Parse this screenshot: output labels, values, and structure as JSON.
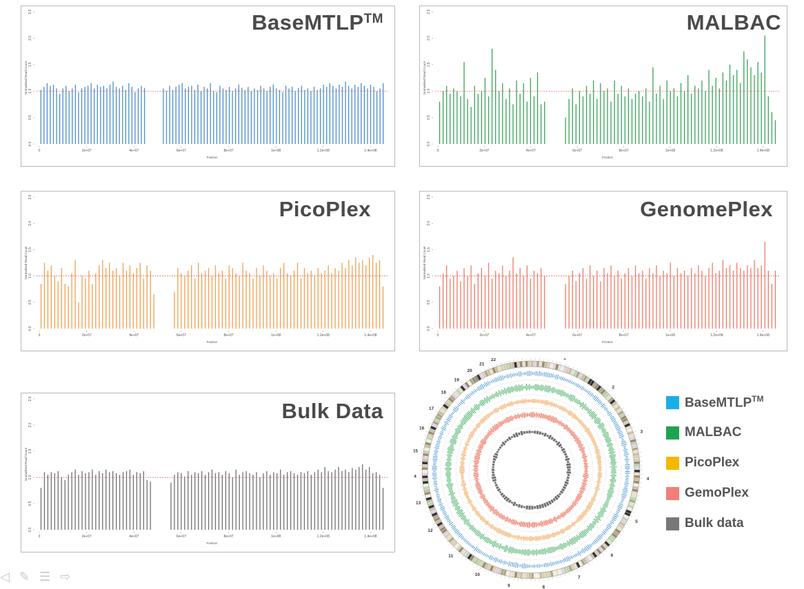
{
  "chart_data": [
    {
      "type": "bar",
      "title": "BaseMTLP",
      "title_sup": "TM",
      "xlabel": "Position",
      "ylabel": "Normalized Read Count",
      "ylim": [
        0,
        2.5
      ],
      "yticks": [
        "0.0",
        "0.5",
        "1.0",
        "1.5",
        "2.0",
        "2.5"
      ],
      "xticks": [
        {
          "label": "0",
          "v": 0
        },
        {
          "label": "2e+07",
          "v": 20000000
        },
        {
          "label": "4e+07",
          "v": 40000000
        },
        {
          "label": "6e+07",
          "v": 60000000
        },
        {
          "label": "8e+07",
          "v": 80000000
        },
        {
          "label": "1e+08",
          "v": 100000000
        },
        {
          "label": "1.2e+08",
          "v": 120000000
        },
        {
          "label": "1.4e+08",
          "v": 140000000
        }
      ],
      "xlim": [
        0,
        146000000
      ],
      "reference_line": 1.0,
      "color": "#4a8fc7",
      "values": [
        1.02,
        1.08,
        1.15,
        1.1,
        1.12,
        1.05,
        0.95,
        1.05,
        1.1,
        1.0,
        1.05,
        1.12,
        0.98,
        1.05,
        1.08,
        1.1,
        1.15,
        1.05,
        1.12,
        1.08,
        1.1,
        1.05,
        1.12,
        1.18,
        1.08,
        1.05,
        1.1,
        1.02,
        1.15,
        1.08,
        0.98,
        1.05,
        1.1,
        1.06,
        null,
        null,
        null,
        null,
        null,
        1.05,
        1.0,
        1.1,
        1.02,
        1.08,
        1.12,
        1.15,
        1.05,
        1.08,
        1.1,
        1.02,
        1.12,
        1.0,
        1.08,
        1.05,
        1.15,
        1.0,
        0.98,
        1.1,
        1.05,
        1.02,
        1.08,
        1.0,
        1.05,
        1.12,
        1.06,
        1.02,
        1.08,
        1.0,
        1.05,
        1.02,
        1.1,
        1.05,
        1.0,
        1.08,
        1.12,
        1.05,
        1.02,
        0.98,
        1.1,
        1.05,
        1.08,
        1.0,
        1.06,
        1.1,
        1.02,
        1.05,
        1.0,
        1.08,
        1.02,
        1.05,
        1.12,
        1.08,
        1.15,
        1.1,
        1.05,
        1.12,
        1.08,
        1.18,
        1.1,
        1.05,
        1.12,
        1.08,
        1.15,
        1.1,
        1.05,
        1.12,
        1.08,
        1.0,
        1.05,
        1.15
      ]
    },
    {
      "type": "bar",
      "title": "MALBAC",
      "xlabel": "Position",
      "ylabel": "Normalized Read Count",
      "ylim": [
        0,
        2.5
      ],
      "yticks": [
        "0.0",
        "0.5",
        "1.0",
        "1.5",
        "2.0",
        "2.5"
      ],
      "xticks": [
        {
          "label": "0",
          "v": 0
        },
        {
          "label": "2e+07",
          "v": 20000000
        },
        {
          "label": "4e+07",
          "v": 40000000
        },
        {
          "label": "6e+07",
          "v": 60000000
        },
        {
          "label": "8e+07",
          "v": 80000000
        },
        {
          "label": "1e+08",
          "v": 100000000
        },
        {
          "label": "1.2e+08",
          "v": 120000000
        },
        {
          "label": "1.4e+08",
          "v": 140000000
        }
      ],
      "xlim": [
        0,
        146000000
      ],
      "reference_line": 1.0,
      "color": "#3aa15a",
      "values": [
        0.8,
        1.0,
        1.1,
        0.95,
        1.05,
        1.0,
        0.9,
        1.55,
        0.85,
        0.7,
        1.1,
        0.95,
        1.0,
        1.25,
        0.9,
        1.8,
        1.4,
        1.0,
        1.15,
        0.85,
        1.05,
        0.75,
        1.2,
        0.95,
        1.15,
        0.8,
        1.25,
        0.9,
        1.35,
        0.75,
        0.8,
        null,
        null,
        null,
        null,
        null,
        0.5,
        0.85,
        1.05,
        0.75,
        1.0,
        0.9,
        1.1,
        0.95,
        1.2,
        0.85,
        1.15,
        1.0,
        1.05,
        0.8,
        1.2,
        0.95,
        1.1,
        0.9,
        1.05,
        0.85,
        0.95,
        1.0,
        0.9,
        1.05,
        0.8,
        1.45,
        0.95,
        1.1,
        0.85,
        1.2,
        1.0,
        1.05,
        0.9,
        1.15,
        1.0,
        1.3,
        0.95,
        1.1,
        1.05,
        1.2,
        1.0,
        1.4,
        1.1,
        1.25,
        1.05,
        1.35,
        1.2,
        1.5,
        1.3,
        1.4,
        1.15,
        1.75,
        1.6,
        1.45,
        1.3,
        1.55,
        1.35,
        2.05,
        0.9,
        0.6,
        0.45
      ]
    },
    {
      "type": "bar",
      "title": "PicoPlex",
      "xlabel": "Position",
      "ylabel": "Normalized Read Count",
      "ylim": [
        0,
        2.5
      ],
      "yticks": [
        "0.0",
        "0.5",
        "1.0",
        "1.5",
        "2.0",
        "2.5"
      ],
      "xticks": [
        {
          "label": "0",
          "v": 0
        },
        {
          "label": "2e+07",
          "v": 20000000
        },
        {
          "label": "4e+07",
          "v": 40000000
        },
        {
          "label": "6e+07",
          "v": 60000000
        },
        {
          "label": "8e+07",
          "v": 80000000
        },
        {
          "label": "1e+08",
          "v": 100000000
        },
        {
          "label": "1.2e+08",
          "v": 120000000
        },
        {
          "label": "1.4e+08",
          "v": 140000000
        }
      ],
      "xlim": [
        0,
        146000000
      ],
      "reference_line": 1.0,
      "color": "#f0a050",
      "values": [
        0.85,
        1.25,
        1.1,
        1.2,
        1.0,
        0.9,
        1.15,
        0.85,
        0.8,
        1.05,
        1.3,
        0.5,
        1.0,
        0.95,
        1.1,
        0.85,
        1.05,
        1.2,
        1.3,
        1.15,
        1.25,
        1.1,
        1.15,
        1.0,
        1.25,
        1.1,
        1.2,
        1.05,
        1.15,
        1.25,
        0.95,
        1.2,
        1.1,
        0.65,
        null,
        null,
        null,
        null,
        null,
        0.7,
        1.15,
        1.05,
        1.0,
        1.1,
        1.2,
        0.95,
        1.25,
        1.05,
        1.1,
        1.15,
        1.0,
        1.2,
        1.05,
        1.1,
        0.95,
        1.2,
        1.15,
        1.05,
        1.0,
        1.25,
        1.1,
        1.05,
        0.95,
        1.15,
        1.0,
        1.2,
        1.1,
        1.0,
        1.05,
        0.95,
        1.15,
        1.25,
        1.05,
        1.0,
        1.1,
        1.25,
        0.95,
        1.15,
        1.05,
        1.1,
        1.0,
        1.15,
        1.05,
        1.1,
        1.2,
        1.05,
        1.15,
        1.1,
        1.25,
        1.15,
        1.3,
        1.2,
        1.35,
        1.25,
        1.3,
        1.2,
        1.35,
        1.4,
        1.25,
        1.3,
        0.8
      ]
    },
    {
      "type": "bar",
      "title": "GenomePlex",
      "xlabel": "Position",
      "ylabel": "Normalized Read Count",
      "ylim": [
        0,
        2.5
      ],
      "yticks": [
        "0.0",
        "0.5",
        "1.0",
        "1.5",
        "2.0",
        "2.5"
      ],
      "xticks": [
        {
          "label": "0",
          "v": 0
        },
        {
          "label": "2e+07",
          "v": 20000000
        },
        {
          "label": "4e+07",
          "v": 40000000
        },
        {
          "label": "6e+07",
          "v": 60000000
        },
        {
          "label": "8e+07",
          "v": 80000000
        },
        {
          "label": "1e+08",
          "v": 100000000
        },
        {
          "label": "1.2e+08",
          "v": 120000000
        },
        {
          "label": "1.4e+08",
          "v": 140000000
        }
      ],
      "xlim": [
        0,
        146000000
      ],
      "reference_line": 1.0,
      "color": "#ec7c68",
      "values": [
        0.8,
        1.05,
        1.2,
        0.95,
        1.0,
        1.1,
        0.9,
        1.15,
        1.0,
        1.2,
        0.85,
        1.05,
        1.15,
        1.0,
        1.25,
        0.95,
        1.1,
        1.05,
        1.2,
        1.0,
        1.1,
        1.35,
        1.05,
        1.15,
        1.0,
        1.2,
        0.95,
        1.1,
        1.05,
        1.15,
        1.0,
        null,
        null,
        null,
        null,
        null,
        0.85,
        1.0,
        1.1,
        0.9,
        1.05,
        1.15,
        0.95,
        1.2,
        1.0,
        1.1,
        0.9,
        1.15,
        1.05,
        1.2,
        1.0,
        1.1,
        0.95,
        1.05,
        1.15,
        1.0,
        1.2,
        1.05,
        1.1,
        0.95,
        1.15,
        1.05,
        1.2,
        1.0,
        1.1,
        1.05,
        1.25,
        1.0,
        1.15,
        1.05,
        1.1,
        1.0,
        1.15,
        1.05,
        1.2,
        1.1,
        1.0,
        1.15,
        1.25,
        1.05,
        1.1,
        1.3,
        1.15,
        1.2,
        1.1,
        1.25,
        1.15,
        1.1,
        1.2,
        1.15,
        1.3,
        1.15,
        1.2,
        1.65,
        1.1,
        0.85,
        1.1
      ]
    },
    {
      "type": "bar",
      "title": "Bulk Data",
      "xlabel": "Position",
      "ylabel": "Normalized Read Count",
      "ylim": [
        0,
        2.5
      ],
      "yticks": [
        "0.0",
        "0.5",
        "1.0",
        "1.5",
        "2.0",
        "2.5"
      ],
      "xticks": [
        {
          "label": "0",
          "v": 0
        },
        {
          "label": "2e+07",
          "v": 20000000
        },
        {
          "label": "4e+07",
          "v": 40000000
        },
        {
          "label": "6e+07",
          "v": 60000000
        },
        {
          "label": "8e+07",
          "v": 80000000
        },
        {
          "label": "1e+08",
          "v": 100000000
        },
        {
          "label": "1.2e+08",
          "v": 120000000
        },
        {
          "label": "1.4e+08",
          "v": 140000000
        }
      ],
      "xlim": [
        0,
        146000000
      ],
      "reference_line": 1.0,
      "color": "#707070",
      "values": [
        0.8,
        1.1,
        1.05,
        1.1,
        1.08,
        1.12,
        1.0,
        0.95,
        1.05,
        1.1,
        1.15,
        1.05,
        1.12,
        1.08,
        1.1,
        1.15,
        1.05,
        1.12,
        1.08,
        1.15,
        1.1,
        1.12,
        1.08,
        1.05,
        1.1,
        1.12,
        1.15,
        1.05,
        1.1,
        1.08,
        1.12,
        0.95,
        0.92,
        null,
        null,
        null,
        null,
        null,
        0.9,
        1.05,
        1.1,
        1.08,
        1.02,
        1.12,
        1.05,
        1.1,
        1.08,
        1.12,
        1.05,
        1.1,
        1.15,
        1.08,
        1.1,
        1.05,
        1.12,
        1.08,
        1.0,
        1.15,
        1.05,
        1.1,
        1.12,
        1.08,
        1.05,
        1.1,
        1.0,
        1.08,
        1.12,
        1.05,
        1.1,
        1.08,
        1.15,
        1.05,
        1.1,
        1.12,
        1.08,
        1.05,
        1.1,
        1.08,
        1.12,
        1.05,
        1.1,
        1.15,
        1.1,
        1.2,
        1.12,
        1.1,
        1.15,
        1.2,
        1.12,
        1.15,
        1.1,
        1.18,
        1.15,
        1.2,
        1.25,
        1.15,
        1.2,
        1.08,
        1.1,
        1.05,
        0.8
      ]
    }
  ],
  "circos": {
    "chromosome_labels": [
      "1",
      "2",
      "3",
      "4",
      "5",
      "6",
      "7",
      "8",
      "9",
      "10",
      "11",
      "12",
      "13",
      "14",
      "15",
      "16",
      "17",
      "18",
      "19",
      "20",
      "21",
      "22",
      "X"
    ],
    "ring_colors": [
      "#3d8fd1",
      "#2fa352",
      "#f0a050",
      "#ec7c68",
      "#707070"
    ]
  },
  "legend": [
    {
      "label": "BaseMTLP",
      "sup": "TM",
      "color": "#1aaee6"
    },
    {
      "label": "MALBAC",
      "color": "#1fa351"
    },
    {
      "label": "PicoPlex",
      "color": "#f5b800"
    },
    {
      "label": "GemoPlex",
      "color": "#f07f7a"
    },
    {
      "label": "Bulk data",
      "color": "#787878"
    }
  ]
}
